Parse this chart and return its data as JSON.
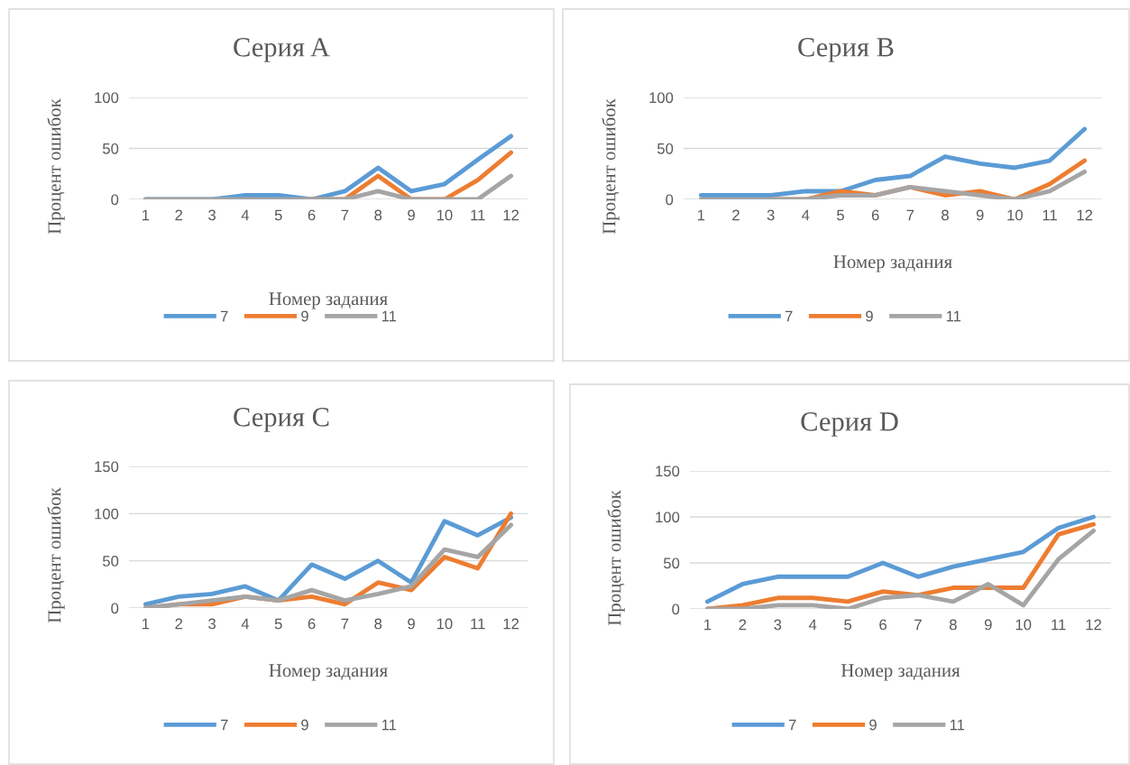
{
  "chart_data": [
    {
      "type": "line",
      "title": "Серия A",
      "xlabel": "Номер задания",
      "ylabel": "Процент ошибок",
      "categories": [
        "1",
        "2",
        "3",
        "4",
        "5",
        "6",
        "7",
        "8",
        "9",
        "10",
        "11",
        "12"
      ],
      "ylim": [
        0,
        100
      ],
      "yticks": [
        0,
        50,
        100
      ],
      "grid": "y",
      "legend": "bottom",
      "marker": "none",
      "line_style": "solid",
      "series": [
        {
          "name": "7",
          "color": "#5b9bd5",
          "values": [
            0,
            0,
            0,
            4,
            4,
            0,
            8,
            31,
            8,
            15,
            39,
            62
          ]
        },
        {
          "name": "9",
          "color": "#ed7d31",
          "values": [
            null,
            null,
            null,
            null,
            null,
            0,
            0,
            23,
            0,
            0,
            19,
            46
          ]
        },
        {
          "name": "11",
          "color": "#a5a5a5",
          "values": [
            0,
            0,
            0,
            0,
            0,
            0,
            0,
            8,
            0,
            0,
            0,
            23
          ]
        }
      ]
    },
    {
      "type": "line",
      "title": "Серия B",
      "xlabel": "Номер задания",
      "ylabel": "Процент ошибок",
      "categories": [
        "1",
        "2",
        "3",
        "4",
        "5",
        "6",
        "7",
        "8",
        "9",
        "10",
        "11",
        "12"
      ],
      "ylim": [
        0,
        100
      ],
      "yticks": [
        0,
        50,
        100
      ],
      "grid": "y",
      "legend": "bottom",
      "marker": "none",
      "line_style": "solid",
      "series": [
        {
          "name": "7",
          "color": "#5b9bd5",
          "values": [
            4,
            4,
            4,
            8,
            8,
            19,
            23,
            42,
            35,
            31,
            38,
            69
          ]
        },
        {
          "name": "9",
          "color": "#ed7d31",
          "values": [
            null,
            null,
            0,
            0,
            8,
            4,
            12,
            4,
            8,
            0,
            15,
            38
          ]
        },
        {
          "name": "11",
          "color": "#a5a5a5",
          "values": [
            0,
            0,
            0,
            0,
            4,
            4,
            12,
            8,
            4,
            0,
            8,
            27
          ]
        }
      ]
    },
    {
      "type": "line",
      "title": "Серия C",
      "xlabel": "Номер задания",
      "ylabel": "Процент ошибок",
      "categories": [
        "1",
        "2",
        "3",
        "4",
        "5",
        "6",
        "7",
        "8",
        "9",
        "10",
        "11",
        "12"
      ],
      "ylim": [
        0,
        150
      ],
      "yticks": [
        0,
        50,
        100,
        150
      ],
      "grid": "y",
      "legend": "bottom",
      "marker": "none",
      "line_style": "solid",
      "series": [
        {
          "name": "7",
          "color": "#5b9bd5",
          "values": [
            4,
            12,
            15,
            23,
            8,
            46,
            31,
            50,
            27,
            92,
            77,
            96
          ]
        },
        {
          "name": "9",
          "color": "#ed7d31",
          "values": [
            0,
            4,
            4,
            12,
            8,
            12,
            4,
            27,
            19,
            54,
            42,
            100
          ]
        },
        {
          "name": "11",
          "color": "#a5a5a5",
          "values": [
            0,
            4,
            8,
            12,
            8,
            19,
            8,
            15,
            23,
            62,
            54,
            88
          ]
        }
      ]
    },
    {
      "type": "line",
      "title": "Серия D",
      "xlabel": "Номер задания",
      "ylabel": "Процент ошибок",
      "categories": [
        "1",
        "2",
        "3",
        "4",
        "5",
        "6",
        "7",
        "8",
        "9",
        "10",
        "11",
        "12"
      ],
      "ylim": [
        0,
        150
      ],
      "yticks": [
        0,
        50,
        100,
        150
      ],
      "grid": "y",
      "legend": "bottom",
      "marker": "none",
      "line_style": "solid",
      "series": [
        {
          "name": "7",
          "color": "#5b9bd5",
          "values": [
            8,
            27,
            35,
            35,
            35,
            50,
            35,
            46,
            54,
            62,
            88,
            100
          ]
        },
        {
          "name": "9",
          "color": "#ed7d31",
          "values": [
            0,
            4,
            12,
            12,
            8,
            19,
            15,
            23,
            23,
            23,
            81,
            92
          ]
        },
        {
          "name": "11",
          "color": "#a5a5a5",
          "values": [
            0,
            0,
            4,
            4,
            0,
            12,
            15,
            8,
            27,
            4,
            54,
            85
          ]
        }
      ]
    }
  ]
}
